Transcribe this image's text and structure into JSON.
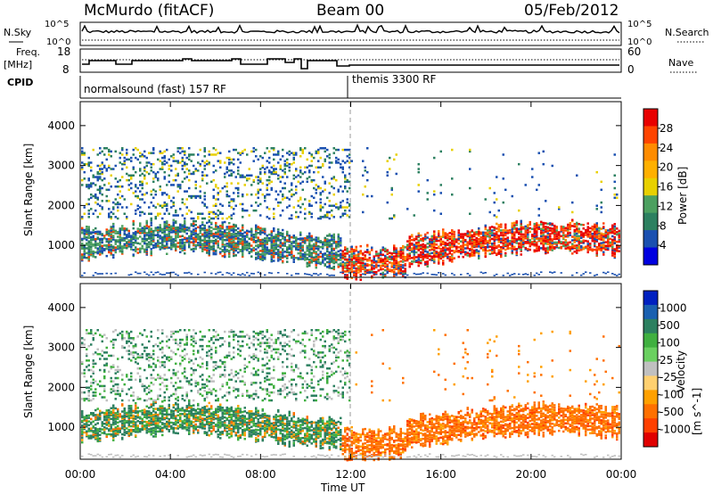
{
  "header": {
    "station": "McMurdo (fitACF)",
    "beam": "Beam 00",
    "date": "05/Feb/2012"
  },
  "strips": {
    "nsky_label": "N.Sky",
    "nsky_ticks": [
      "10^5",
      "10^0"
    ],
    "nsearch_label": "N.Search",
    "nsearch_ticks": [
      "10^5",
      "10^0"
    ],
    "freq_label": "Freq.",
    "freq_unit": "[MHz]",
    "freq_ticks": [
      "18",
      "8"
    ],
    "nave_label": "Nave",
    "nave_ticks": [
      "60",
      "0"
    ],
    "cpid_label": "CPID",
    "cpid_segments": [
      "normalsound (fast) 157 RF",
      "themis 3300 RF"
    ]
  },
  "chart_data": [
    {
      "type": "heatmap",
      "name": "power-panel",
      "xlabel": "Time UT",
      "ylabel": "Slant Range [km]",
      "x_ticks": [
        "00:00",
        "04:00",
        "08:00",
        "12:00",
        "16:00",
        "20:00",
        "00:00"
      ],
      "y_ticks": [
        1000,
        2000,
        3000,
        4000
      ],
      "ylim": [
        200,
        4600
      ],
      "colorbar_label": "Power [dB]",
      "colorbar_ticks": [
        28,
        24,
        20,
        16,
        12,
        8,
        4
      ],
      "colors": [
        "#e80000",
        "#ff4400",
        "#ff8c00",
        "#ffb000",
        "#e8d000",
        "#4ca060",
        "#2c8060",
        "#1a50b0",
        "#0000e0"
      ]
    },
    {
      "type": "heatmap",
      "name": "velocity-panel",
      "xlabel": "Time UT",
      "ylabel": "Slant Range [km]",
      "x_ticks": [
        "00:00",
        "04:00",
        "08:00",
        "12:00",
        "16:00",
        "20:00",
        "00:00"
      ],
      "y_ticks": [
        1000,
        2000,
        3000,
        4000
      ],
      "ylim": [
        200,
        4600
      ],
      "colorbar_label": "Velocity",
      "colorbar_unit": "[m s^-1]",
      "colorbar_ticks": [
        1000,
        500,
        100,
        25,
        -25,
        -100,
        -500,
        -1000
      ],
      "colors": [
        "#0020c0",
        "#1a60b0",
        "#2c8060",
        "#40b040",
        "#6ad060",
        "#c0c0c0",
        "#ffd070",
        "#ffa000",
        "#ff7000",
        "#ff4000",
        "#e00000"
      ]
    }
  ]
}
